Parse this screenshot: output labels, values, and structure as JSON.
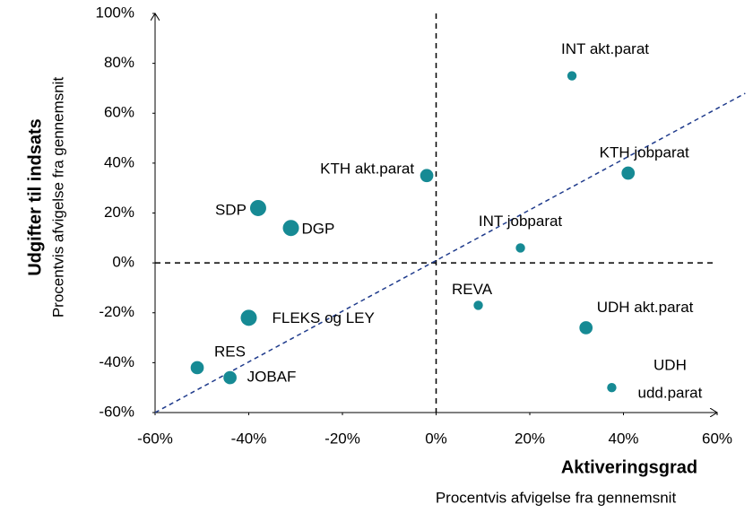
{
  "chart_data": {
    "type": "scatter",
    "ylabel": "Udgifter til indsats",
    "ysublabel": "Procentvis afvigelse fra gennemsnit",
    "xlabel": "Aktiveringsgrad",
    "xsublabel": "Procentvis afvigelse fra gennemsnit",
    "color": "#168a94",
    "labels": [
      "INT akt.parat",
      "KTH jobparat",
      "KTH akt.parat",
      "SDP",
      "DGP",
      "INT jobparat",
      "REVA",
      "UDH akt.parat",
      "FLEKS og LEY",
      "RES",
      "JOBAF",
      [
        "UDH",
        "udd.parat"
      ]
    ],
    "x": [
      29,
      41,
      -2,
      -38,
      -31,
      18,
      9,
      32,
      -40,
      -51,
      -44,
      37.5
    ],
    "values": [
      75,
      36,
      35,
      22,
      14,
      6,
      -17,
      -26,
      -22,
      -42,
      -46,
      -50
    ],
    "sizes": [
      1,
      2,
      2,
      3,
      3,
      1,
      1,
      2,
      3,
      2,
      2,
      1
    ],
    "trendline": {
      "x": [
        -60,
        66
      ],
      "y": [
        -60,
        68
      ]
    },
    "xlim": [
      -60,
      60
    ],
    "ylim": [
      -60,
      100
    ],
    "xticks": [
      {
        "value": -60,
        "label": "-60%"
      },
      {
        "value": -40,
        "label": "-40%"
      },
      {
        "value": -20,
        "label": "-20%"
      },
      {
        "value": 0,
        "label": "0%"
      },
      {
        "value": 20,
        "label": "20%"
      },
      {
        "value": 40,
        "label": "40%"
      },
      {
        "value": 60,
        "label": "60%"
      }
    ],
    "yticks": [
      {
        "value": -60,
        "label": "-60%"
      },
      {
        "value": -40,
        "label": "-40%"
      },
      {
        "value": -20,
        "label": "-20%"
      },
      {
        "value": 0,
        "label": "0%"
      },
      {
        "value": 20,
        "label": "20%"
      },
      {
        "value": 40,
        "label": "40%"
      },
      {
        "value": 60,
        "label": "60%"
      },
      {
        "value": 80,
        "label": "80%"
      },
      {
        "value": 100,
        "label": "100%"
      }
    ]
  }
}
